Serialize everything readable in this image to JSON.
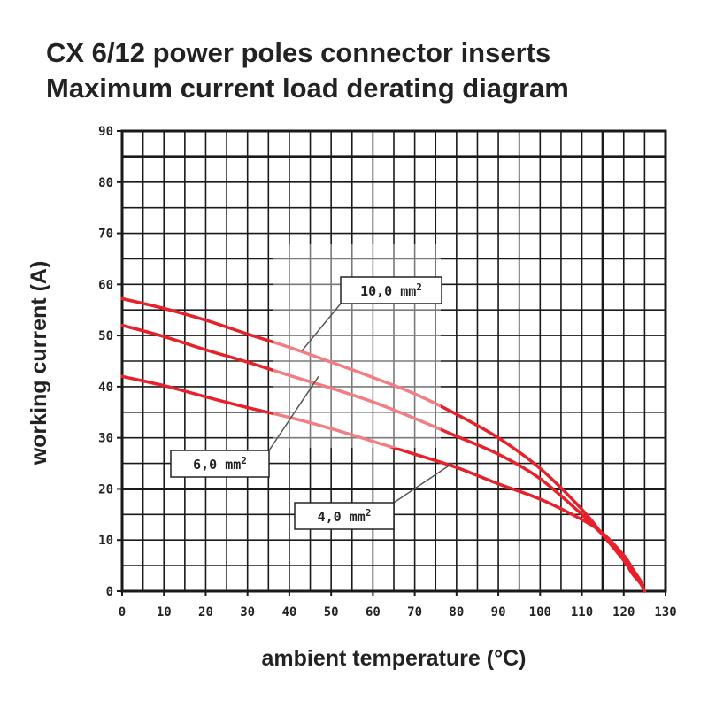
{
  "chart_data": {
    "type": "line",
    "title": "CX 6/12 power poles connector inserts",
    "subtitle": "Maximum current load derating diagram",
    "xlabel": "ambient temperature (°C)",
    "ylabel": "working current (A)",
    "xlim": [
      0,
      130
    ],
    "ylim": [
      0,
      90
    ],
    "xticks": [
      "0",
      "10",
      "20",
      "30",
      "40",
      "50",
      "60",
      "70",
      "80",
      "90",
      "100",
      "110",
      "120",
      "130"
    ],
    "yticks": [
      "0",
      "10",
      "20",
      "30",
      "40",
      "50",
      "60",
      "70",
      "80",
      "90"
    ],
    "grid": true,
    "minor_grid_step_x": 5,
    "minor_grid_step_y": 5,
    "major_grid_lines": {
      "x": [
        115
      ],
      "y": [
        20,
        85
      ]
    },
    "series": [
      {
        "name": "10,0 mm²",
        "color": "#e8202a",
        "x": [
          0,
          10,
          20,
          30,
          40,
          50,
          60,
          70,
          80,
          90,
          100,
          110,
          115,
          120,
          122,
          124,
          125
        ],
        "y": [
          57.2,
          55.3,
          53.0,
          50.3,
          47.7,
          44.8,
          41.8,
          38.6,
          34.6,
          30.0,
          24.0,
          16.0,
          11.0,
          6.0,
          3.5,
          1.5,
          0
        ]
      },
      {
        "name": "6,0 mm²",
        "color": "#e8202a",
        "x": [
          0,
          10,
          20,
          30,
          40,
          50,
          60,
          70,
          80,
          90,
          100,
          110,
          115,
          120,
          122,
          124,
          125
        ],
        "y": [
          52.0,
          49.8,
          47.2,
          44.8,
          42.2,
          39.7,
          37.0,
          33.8,
          30.3,
          26.8,
          22.0,
          15.0,
          11.0,
          7.0,
          4.5,
          2.0,
          0
        ]
      },
      {
        "name": "4,0 mm²",
        "color": "#e8202a",
        "x": [
          0,
          10,
          20,
          30,
          40,
          50,
          60,
          70,
          80,
          90,
          100,
          110,
          115,
          120,
          122,
          124,
          125
        ],
        "y": [
          42.0,
          40.2,
          38.0,
          35.9,
          34.0,
          31.8,
          29.3,
          26.8,
          24.2,
          21.0,
          18.0,
          14.0,
          11.3,
          7.0,
          4.5,
          2.0,
          0
        ]
      }
    ],
    "annotations": [
      {
        "id": "label-10",
        "label": "10,0 mm",
        "sup": "2",
        "points_to": [
          43,
          47
        ]
      },
      {
        "id": "label-6",
        "label": "6,0 mm",
        "sup": "2",
        "points_to": [
          47,
          42
        ]
      },
      {
        "id": "label-4",
        "label": "4,0 mm",
        "sup": "2",
        "points_to": [
          79,
          25
        ]
      }
    ]
  }
}
